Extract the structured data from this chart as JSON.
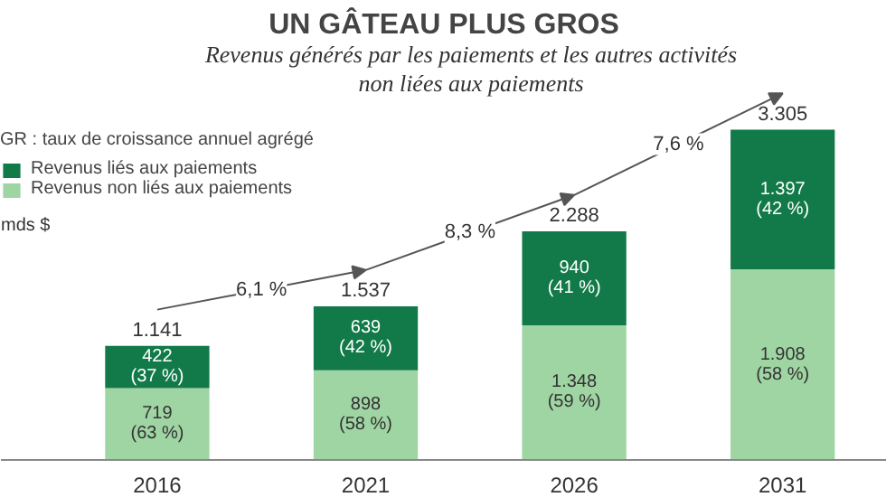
{
  "chart_data": {
    "type": "bar",
    "stacked": true,
    "title": "UN GÂTEAU PLUS GROS",
    "subtitle": "Revenus générés par les paiements et les autres activités\nnon liées aux paiements",
    "legend_title": "GR : taux de croissance annuel agrégé",
    "ylabel": "mds $",
    "categories": [
      "2016",
      "2021",
      "2026",
      "2031"
    ],
    "series": [
      {
        "name": "Revenus non liés aux paiements",
        "color": "#9fd4a3",
        "values": [
          719,
          898,
          1348,
          1908
        ],
        "value_labels": [
          "719\n(63 %)",
          "898\n(58 %)",
          "1.348\n(59 %)",
          "1.908\n(58 %)"
        ]
      },
      {
        "name": "Revenus liés aux paiements",
        "color": "#117a48",
        "values": [
          422,
          639,
          940,
          1397
        ],
        "value_labels": [
          "422\n(37 %)",
          "639\n(42 %)",
          "940\n(41 %)",
          "1.397\n(42 %)"
        ]
      }
    ],
    "totals": [
      "1.141",
      "1.537",
      "2.288",
      "3.305"
    ],
    "annotations": [
      "6,1 %",
      "8,3 %",
      "7,6 %"
    ],
    "legend": "top left"
  }
}
